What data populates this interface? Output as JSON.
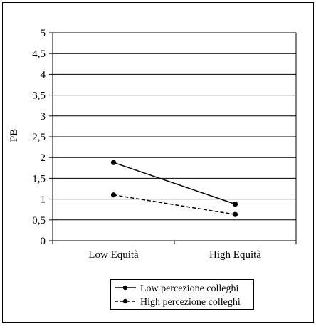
{
  "chart_data": {
    "type": "line",
    "categories": [
      "Low Equità",
      "High Equità"
    ],
    "ylabel": "PB",
    "xlabel": "",
    "title": "",
    "ylim": [
      0,
      5
    ],
    "yticks": [
      0,
      0.5,
      1,
      1.5,
      2,
      2.5,
      3,
      3.5,
      4,
      4.5,
      5
    ],
    "ytick_labels": [
      "0",
      "0,5",
      "1",
      "1,5",
      "2",
      "2,5",
      "3",
      "3,5",
      "4",
      "4,5",
      "5"
    ],
    "grid": true,
    "legend_position": "bottom",
    "series": [
      {
        "name": "Low percezione colleghi",
        "values": [
          1.88,
          0.88
        ],
        "line_style": "solid",
        "color": "#000000"
      },
      {
        "name": "High percezione colleghi",
        "values": [
          1.1,
          0.63
        ],
        "line_style": "dashed",
        "color": "#000000"
      }
    ]
  }
}
